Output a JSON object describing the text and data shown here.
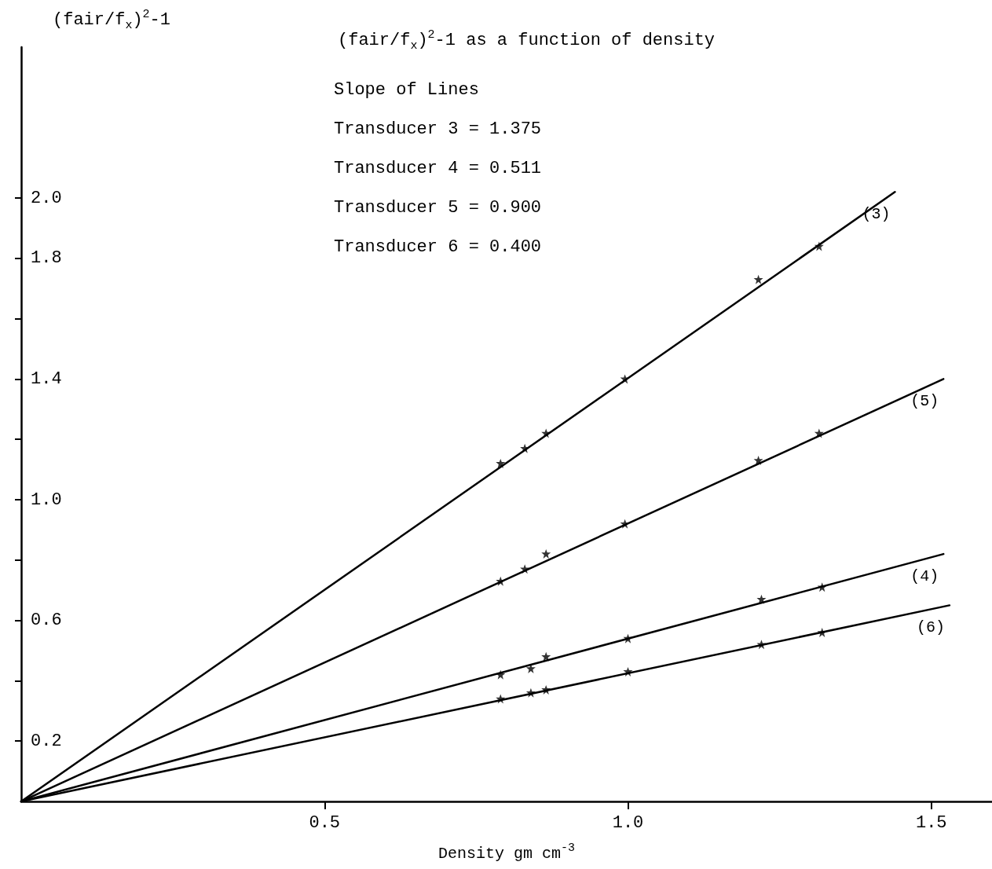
{
  "chart_data": {
    "type": "line",
    "title": "(fair/f$_{x}$)$^{2}$-1 as a function of density",
    "xlabel": "Density gm cm$^{-3}$",
    "ylabel": "(fair/f$_{x}$)$^{2}$-1",
    "annotations": [
      "Slope of Lines",
      "Transducer 3 = 1.375",
      "Transducer 4 = 0.511",
      "Transducer 5 = 0.900",
      "Transducer 6 = 0.400"
    ],
    "xlim": [
      0,
      1.6
    ],
    "xticks": [
      0.5,
      {
        "value": 1,
        "label": "1.0"
      },
      1.5
    ],
    "ylim": [
      0,
      2.5
    ],
    "yticks": [
      0.2,
      {
        "value": 0.4,
        "label": null
      },
      0.6,
      {
        "value": 0.8,
        "label": null
      },
      {
        "value": 1,
        "label": "1.0"
      },
      {
        "value": 1.2,
        "label": null
      },
      1.4,
      {
        "value": 1.6,
        "label": null
      },
      1.8,
      {
        "value": 2,
        "label": "2.0"
      }
    ],
    "grid": false,
    "legend": false,
    "series": [
      {
        "name": "(3)",
        "color": "#000000",
        "marker": "none",
        "x": [
          0,
          1.44
        ],
        "values": [
          0,
          2.02
        ]
      },
      {
        "type": "scatter",
        "color": "#000000",
        "marker": "star",
        "x": [
          0.79,
          0.83,
          0.865,
          0.995,
          1.215,
          1.315
        ],
        "values": [
          1.12,
          1.17,
          1.22,
          1.4,
          1.73,
          1.84
        ]
      },
      {
        "name": "(5)",
        "color": "#000000",
        "marker": "none",
        "x": [
          0,
          1.52
        ],
        "values": [
          0,
          1.4
        ]
      },
      {
        "type": "scatter",
        "color": "#000000",
        "marker": "star",
        "x": [
          0.79,
          0.83,
          0.865,
          0.995,
          1.215,
          1.315
        ],
        "values": [
          0.73,
          0.77,
          0.82,
          0.92,
          1.13,
          1.22
        ]
      },
      {
        "name": "(4)",
        "color": "#000000",
        "marker": "none",
        "x": [
          0,
          1.52
        ],
        "values": [
          0,
          0.82
        ]
      },
      {
        "type": "scatter",
        "color": "#000000",
        "marker": "star",
        "x": [
          0.79,
          0.84,
          0.865,
          1.0,
          1.22,
          1.32
        ],
        "values": [
          0.42,
          0.44,
          0.48,
          0.54,
          0.67,
          0.71
        ]
      },
      {
        "name": "(6)",
        "color": "#000000",
        "marker": "none",
        "x": [
          0,
          1.53
        ],
        "values": [
          0,
          0.65
        ]
      },
      {
        "type": "scatter",
        "color": "#000000",
        "marker": "star",
        "x": [
          0.79,
          0.84,
          0.865,
          1.0,
          1.22,
          1.32
        ],
        "values": [
          0.34,
          0.36,
          0.37,
          0.43,
          0.52,
          0.56
        ]
      }
    ]
  }
}
